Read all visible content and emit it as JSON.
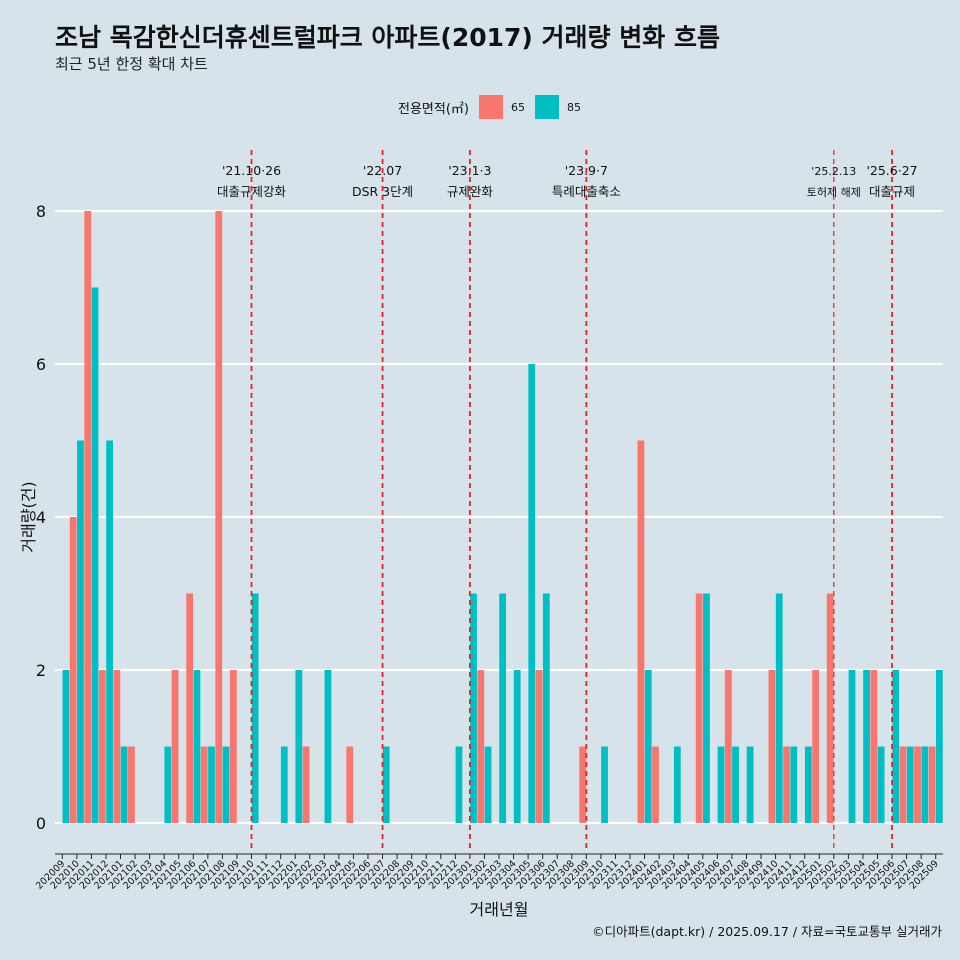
{
  "title": "조남 목감한신더휴센트럴파크 아파트(2017) 거래량 변화 흐름",
  "subtitle": "최근 5년 한정 확대 차트",
  "caption": "©디아파트(dapt.kr) / 2025.09.17 / 자료=국토교통부 실거래가",
  "colors": {
    "65": "#f8766d",
    "85": "#00bfc4",
    "background": "#d6e3ea",
    "vline": "#e8231f"
  },
  "chart_data": {
    "type": "bar",
    "xlabel": "거래년월",
    "ylabel": "거래량(건)",
    "ylim": [
      0,
      8
    ],
    "yticks": [
      0,
      2,
      4,
      6,
      8
    ],
    "legend": {
      "title": "전용면적(㎡)",
      "position": "top",
      "entries": [
        "65",
        "85"
      ]
    },
    "categories": [
      "202009",
      "202010",
      "202011",
      "202012",
      "202101",
      "202102",
      "202103",
      "202104",
      "202105",
      "202106",
      "202107",
      "202108",
      "202109",
      "202110",
      "202111",
      "202112",
      "202201",
      "202202",
      "202203",
      "202204",
      "202205",
      "202206",
      "202207",
      "202208",
      "202209",
      "202210",
      "202211",
      "202212",
      "202301",
      "202302",
      "202303",
      "202304",
      "202305",
      "202306",
      "202307",
      "202308",
      "202309",
      "202310",
      "202311",
      "202312",
      "202401",
      "202402",
      "202403",
      "202404",
      "202405",
      "202406",
      "202407",
      "202408",
      "202409",
      "202410",
      "202411",
      "202412",
      "202501",
      "202502",
      "202503",
      "202504",
      "202505",
      "202506",
      "202507",
      "202508",
      "202509"
    ],
    "series": [
      {
        "name": "65",
        "values": [
          0,
          4,
          8,
          2,
          2,
          1,
          0,
          0,
          2,
          3,
          1,
          8,
          2,
          0,
          0,
          0,
          0,
          1,
          0,
          0,
          1,
          0,
          0,
          0,
          0,
          0,
          0,
          0,
          0,
          2,
          0,
          0,
          0,
          2,
          0,
          0,
          1,
          0,
          0,
          0,
          5,
          1,
          0,
          0,
          3,
          0,
          2,
          0,
          0,
          2,
          1,
          0,
          2,
          3,
          0,
          0,
          2,
          0,
          1,
          1,
          1
        ]
      },
      {
        "name": "85",
        "values": [
          2,
          5,
          7,
          5,
          1,
          0,
          0,
          1,
          0,
          2,
          1,
          1,
          0,
          3,
          0,
          1,
          2,
          0,
          2,
          0,
          0,
          0,
          1,
          0,
          0,
          0,
          0,
          1,
          3,
          1,
          3,
          2,
          6,
          3,
          0,
          0,
          0,
          1,
          0,
          0,
          2,
          0,
          1,
          0,
          3,
          1,
          1,
          1,
          0,
          3,
          1,
          1,
          0,
          0,
          2,
          2,
          1,
          2,
          1,
          1,
          2
        ]
      }
    ],
    "annotations": [
      {
        "index": 13,
        "date": "'21.10·26",
        "label": "대출규제강화",
        "small": false
      },
      {
        "index": 22,
        "date": "'22.07",
        "label": "DSR 3단계",
        "small": false
      },
      {
        "index": 28,
        "date": "'23.1·3",
        "label": "규제완화",
        "small": false
      },
      {
        "index": 36,
        "date": "'23.9·7",
        "label": "특례대출축소",
        "small": false
      },
      {
        "index": 53,
        "date": "'25.2.13",
        "label": "토허제 해제",
        "small": true
      },
      {
        "index": 57,
        "date": "'25.6·27",
        "label": "대출규제",
        "small": false
      }
    ]
  }
}
